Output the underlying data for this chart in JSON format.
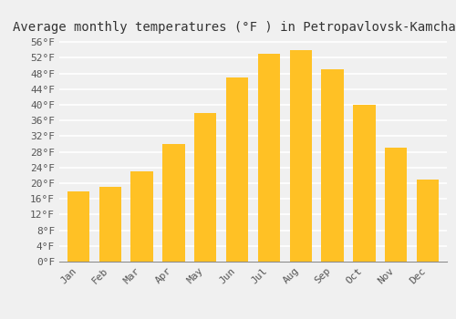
{
  "title": "Average monthly temperatures (°F ) in Petropavlovsk-Kamchatskiy",
  "months": [
    "Jan",
    "Feb",
    "Mar",
    "Apr",
    "May",
    "Jun",
    "Jul",
    "Aug",
    "Sep",
    "Oct",
    "Nov",
    "Dec"
  ],
  "values": [
    18,
    19,
    23,
    30,
    38,
    47,
    53,
    54,
    49,
    40,
    29,
    21
  ],
  "bar_color_left": "#FFC125",
  "bar_color_right": "#FFA020",
  "background_color": "#F0F0F0",
  "grid_color": "#FFFFFF",
  "ytick_start": 0,
  "ytick_end": 56,
  "ytick_step": 4,
  "title_fontsize": 10,
  "tick_fontsize": 8,
  "font_family": "monospace"
}
